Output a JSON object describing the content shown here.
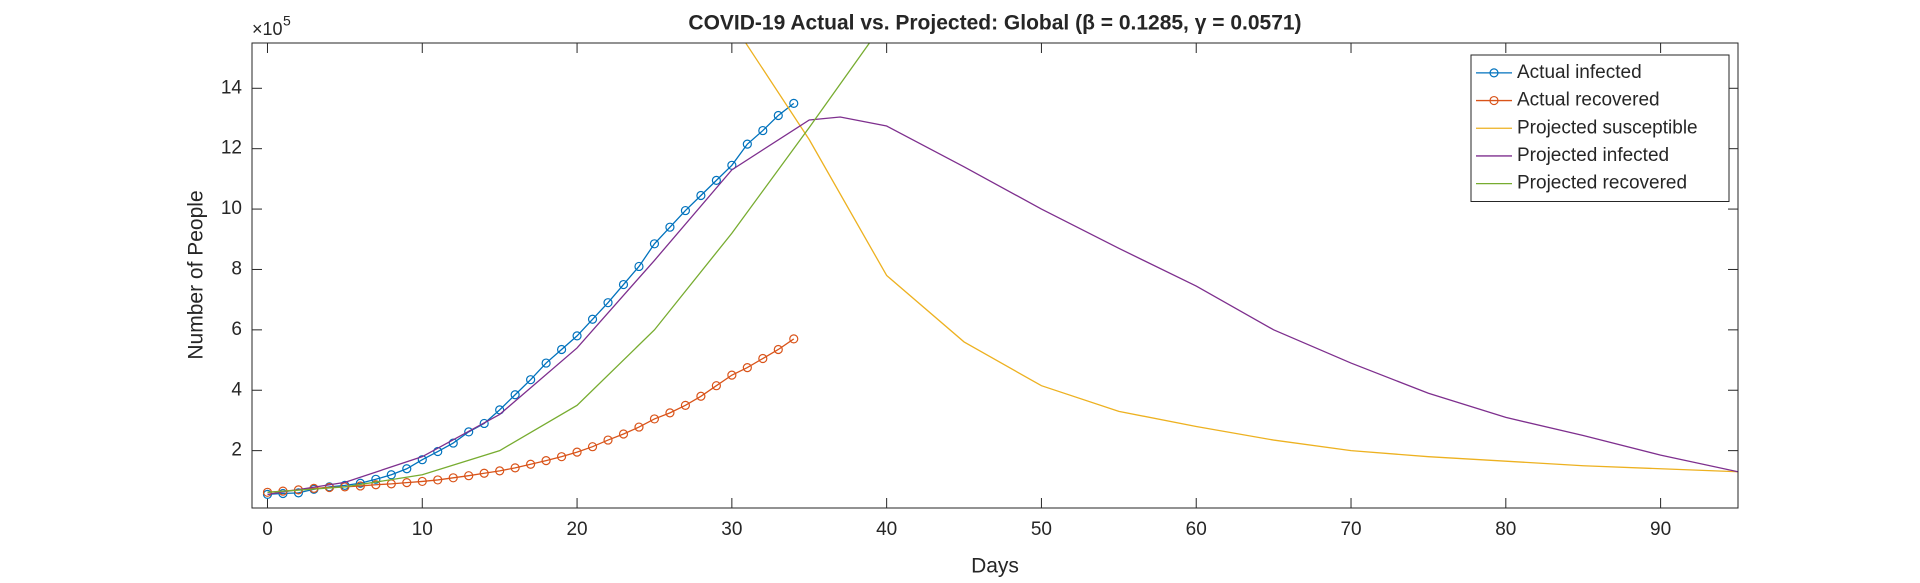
{
  "chart_data": {
    "type": "line",
    "title": "COVID-19 Actual vs. Projected: Global (β = 0.1285, γ = 0.0571)",
    "x_label": "Days",
    "y_label": "Number of People",
    "y_scale_label": "×10",
    "y_scale_exponent": 5,
    "xlim": [
      -1,
      95
    ],
    "ylim": [
      0.1,
      15.5
    ],
    "xticks": [
      0,
      10,
      20,
      30,
      40,
      50,
      60,
      70,
      80,
      90
    ],
    "yticks": [
      2,
      4,
      6,
      8,
      10,
      12,
      14
    ],
    "legend": "upper right",
    "series": [
      {
        "name": "Actual infected",
        "color": "#0072bd",
        "marker": "circle",
        "x": [
          0,
          1,
          2,
          3,
          4,
          5,
          6,
          7,
          8,
          9,
          10,
          11,
          12,
          13,
          14,
          15,
          16,
          17,
          18,
          19,
          20,
          21,
          22,
          23,
          24,
          25,
          26,
          27,
          28,
          29,
          30,
          31,
          32,
          33,
          34
        ],
        "values": [
          0.55,
          0.58,
          0.6,
          0.72,
          0.8,
          0.85,
          0.92,
          1.05,
          1.2,
          1.4,
          1.7,
          1.97,
          2.25,
          2.62,
          2.9,
          3.35,
          3.85,
          4.35,
          4.9,
          5.35,
          5.8,
          6.35,
          6.9,
          7.5,
          8.1,
          8.85,
          9.4,
          9.95,
          10.45,
          10.95,
          11.45,
          12.15,
          12.6,
          13.1,
          13.5
        ]
      },
      {
        "name": "Actual recovered",
        "color": "#d95319",
        "marker": "circle",
        "x": [
          0,
          1,
          2,
          3,
          4,
          5,
          6,
          7,
          8,
          9,
          10,
          11,
          12,
          13,
          14,
          15,
          16,
          17,
          18,
          19,
          20,
          21,
          22,
          23,
          24,
          25,
          26,
          27,
          28,
          29,
          30,
          31,
          32,
          33,
          34
        ],
        "values": [
          0.62,
          0.66,
          0.7,
          0.75,
          0.78,
          0.8,
          0.83,
          0.87,
          0.9,
          0.94,
          0.98,
          1.03,
          1.1,
          1.17,
          1.25,
          1.33,
          1.43,
          1.55,
          1.67,
          1.8,
          1.95,
          2.13,
          2.35,
          2.55,
          2.78,
          3.05,
          3.25,
          3.5,
          3.8,
          4.15,
          4.5,
          4.75,
          5.05,
          5.35,
          5.7
        ]
      },
      {
        "name": "Projected susceptible",
        "color": "#edb120",
        "x": [
          30,
          35,
          40,
          45,
          50,
          55,
          60,
          65,
          70,
          75,
          80,
          85,
          90,
          95
        ],
        "values": [
          16.2,
          12.3,
          7.8,
          5.6,
          4.15,
          3.3,
          2.8,
          2.35,
          2.0,
          1.8,
          1.65,
          1.5,
          1.4,
          1.3
        ]
      },
      {
        "name": "Projected infected",
        "color": "#7e2f8e",
        "x": [
          0,
          5,
          10,
          15,
          20,
          25,
          30,
          35,
          37,
          40,
          45,
          50,
          55,
          60,
          65,
          70,
          75,
          80,
          85,
          90,
          95
        ],
        "values": [
          0.55,
          0.95,
          1.8,
          3.2,
          5.4,
          8.3,
          11.3,
          12.95,
          13.05,
          12.75,
          11.4,
          10.0,
          8.7,
          7.45,
          6.0,
          4.9,
          3.9,
          3.1,
          2.5,
          1.85,
          1.3
        ]
      },
      {
        "name": "Projected recovered",
        "color": "#77ac30",
        "x": [
          0,
          5,
          10,
          15,
          20,
          25,
          30,
          35,
          40
        ],
        "values": [
          0.62,
          0.8,
          1.2,
          2.0,
          3.5,
          6.0,
          9.2,
          12.7,
          16.3
        ]
      }
    ]
  }
}
